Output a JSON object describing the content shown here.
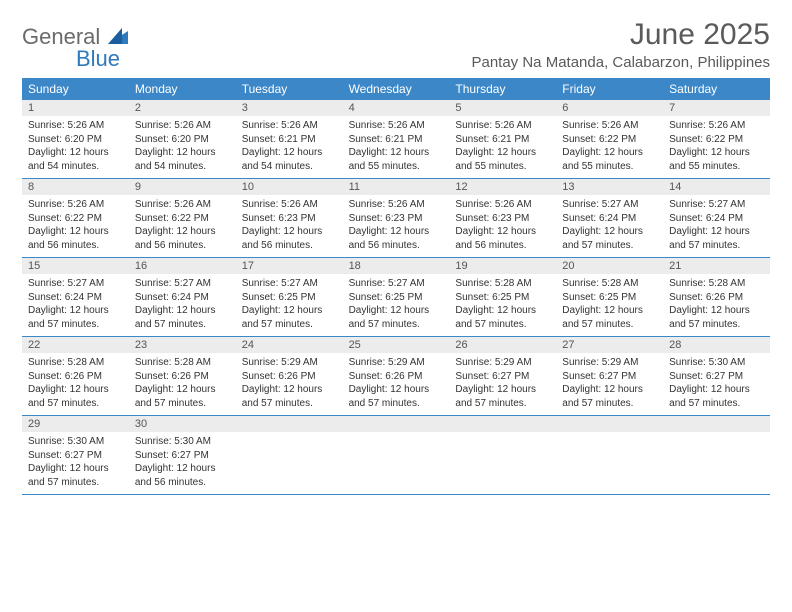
{
  "logo": {
    "line1": "General",
    "line2": "Blue"
  },
  "title": "June 2025",
  "location": "Pantay Na Matanda, Calabarzon, Philippines",
  "colors": {
    "header_bg": "#3b87c8",
    "header_text": "#ffffff",
    "daynum_bg": "#ececec",
    "border": "#3b87c8",
    "text": "#333333",
    "title_text": "#5a5a5a"
  },
  "day_names": [
    "Sunday",
    "Monday",
    "Tuesday",
    "Wednesday",
    "Thursday",
    "Friday",
    "Saturday"
  ],
  "days": [
    {
      "n": "1",
      "sr": "5:26 AM",
      "ss": "6:20 PM",
      "dh": "12",
      "dm": "54"
    },
    {
      "n": "2",
      "sr": "5:26 AM",
      "ss": "6:20 PM",
      "dh": "12",
      "dm": "54"
    },
    {
      "n": "3",
      "sr": "5:26 AM",
      "ss": "6:21 PM",
      "dh": "12",
      "dm": "54"
    },
    {
      "n": "4",
      "sr": "5:26 AM",
      "ss": "6:21 PM",
      "dh": "12",
      "dm": "55"
    },
    {
      "n": "5",
      "sr": "5:26 AM",
      "ss": "6:21 PM",
      "dh": "12",
      "dm": "55"
    },
    {
      "n": "6",
      "sr": "5:26 AM",
      "ss": "6:22 PM",
      "dh": "12",
      "dm": "55"
    },
    {
      "n": "7",
      "sr": "5:26 AM",
      "ss": "6:22 PM",
      "dh": "12",
      "dm": "55"
    },
    {
      "n": "8",
      "sr": "5:26 AM",
      "ss": "6:22 PM",
      "dh": "12",
      "dm": "56"
    },
    {
      "n": "9",
      "sr": "5:26 AM",
      "ss": "6:22 PM",
      "dh": "12",
      "dm": "56"
    },
    {
      "n": "10",
      "sr": "5:26 AM",
      "ss": "6:23 PM",
      "dh": "12",
      "dm": "56"
    },
    {
      "n": "11",
      "sr": "5:26 AM",
      "ss": "6:23 PM",
      "dh": "12",
      "dm": "56"
    },
    {
      "n": "12",
      "sr": "5:26 AM",
      "ss": "6:23 PM",
      "dh": "12",
      "dm": "56"
    },
    {
      "n": "13",
      "sr": "5:27 AM",
      "ss": "6:24 PM",
      "dh": "12",
      "dm": "57"
    },
    {
      "n": "14",
      "sr": "5:27 AM",
      "ss": "6:24 PM",
      "dh": "12",
      "dm": "57"
    },
    {
      "n": "15",
      "sr": "5:27 AM",
      "ss": "6:24 PM",
      "dh": "12",
      "dm": "57"
    },
    {
      "n": "16",
      "sr": "5:27 AM",
      "ss": "6:24 PM",
      "dh": "12",
      "dm": "57"
    },
    {
      "n": "17",
      "sr": "5:27 AM",
      "ss": "6:25 PM",
      "dh": "12",
      "dm": "57"
    },
    {
      "n": "18",
      "sr": "5:27 AM",
      "ss": "6:25 PM",
      "dh": "12",
      "dm": "57"
    },
    {
      "n": "19",
      "sr": "5:28 AM",
      "ss": "6:25 PM",
      "dh": "12",
      "dm": "57"
    },
    {
      "n": "20",
      "sr": "5:28 AM",
      "ss": "6:25 PM",
      "dh": "12",
      "dm": "57"
    },
    {
      "n": "21",
      "sr": "5:28 AM",
      "ss": "6:26 PM",
      "dh": "12",
      "dm": "57"
    },
    {
      "n": "22",
      "sr": "5:28 AM",
      "ss": "6:26 PM",
      "dh": "12",
      "dm": "57"
    },
    {
      "n": "23",
      "sr": "5:28 AM",
      "ss": "6:26 PM",
      "dh": "12",
      "dm": "57"
    },
    {
      "n": "24",
      "sr": "5:29 AM",
      "ss": "6:26 PM",
      "dh": "12",
      "dm": "57"
    },
    {
      "n": "25",
      "sr": "5:29 AM",
      "ss": "6:26 PM",
      "dh": "12",
      "dm": "57"
    },
    {
      "n": "26",
      "sr": "5:29 AM",
      "ss": "6:27 PM",
      "dh": "12",
      "dm": "57"
    },
    {
      "n": "27",
      "sr": "5:29 AM",
      "ss": "6:27 PM",
      "dh": "12",
      "dm": "57"
    },
    {
      "n": "28",
      "sr": "5:30 AM",
      "ss": "6:27 PM",
      "dh": "12",
      "dm": "57"
    },
    {
      "n": "29",
      "sr": "5:30 AM",
      "ss": "6:27 PM",
      "dh": "12",
      "dm": "57"
    },
    {
      "n": "30",
      "sr": "5:30 AM",
      "ss": "6:27 PM",
      "dh": "12",
      "dm": "56"
    }
  ],
  "labels": {
    "sunrise": "Sunrise:",
    "sunset": "Sunset:",
    "daylight": "Daylight:",
    "hours": "hours",
    "and": "and",
    "minutes": "minutes."
  }
}
